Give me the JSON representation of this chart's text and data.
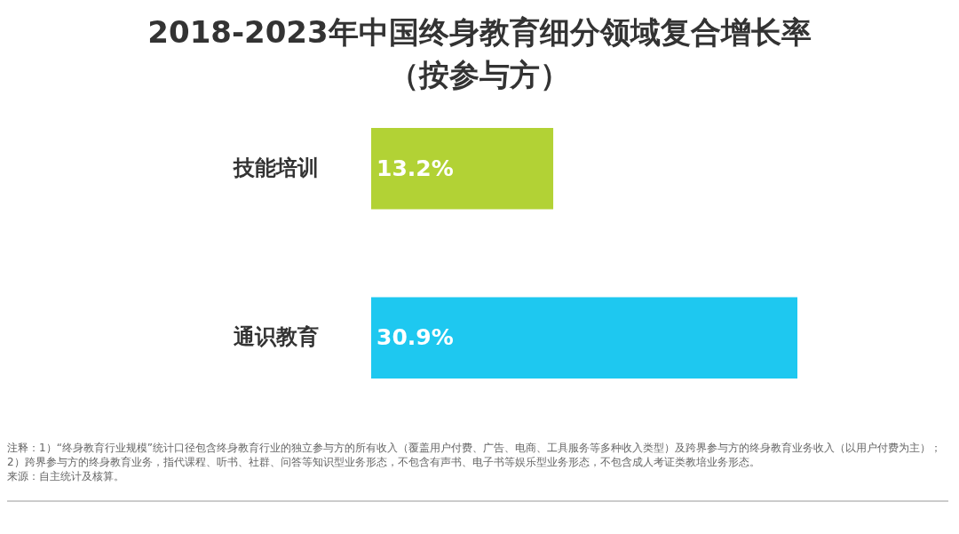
{
  "chart_data": {
    "type": "bar",
    "orientation": "horizontal",
    "title": "2018-2023年中国终身教育细分领域复合增长率（按参与方）",
    "categories": [
      "技能培训",
      "通识教育"
    ],
    "values": [
      13.2,
      30.9
    ],
    "colors": [
      "#b2d235",
      "#1ec8f0"
    ],
    "data_labels": true,
    "value_labels": [
      "13.2%",
      "30.9%"
    ],
    "annotations": [
      "注释：1）“终身教育行业规模”统计口径包含终身教育行业的独立参与方的所有收入（覆盖用户付费、广告、电商、工具服务等多种收入类型）及跨界参与方的终身教育业务收入（以用户付费为主）；2）跨界参与方的终身教育业务，指代课程、听书、社群、问答等知识型业务形态，不包含有声书、电子书等娱乐型业务形态，不包含成人考证类教培业务形态。",
      "来源：自主统计及核算。"
    ]
  }
}
